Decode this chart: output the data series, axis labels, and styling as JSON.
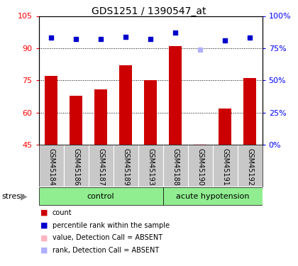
{
  "title": "GDS1251 / 1390547_at",
  "samples": [
    "GSM45184",
    "GSM45186",
    "GSM45187",
    "GSM45189",
    "GSM45193",
    "GSM45188",
    "GSM45190",
    "GSM45191",
    "GSM45192"
  ],
  "red_bar_values": [
    77,
    68,
    71,
    82,
    75,
    91,
    null,
    62,
    76
  ],
  "blue_square_values": [
    83,
    82,
    82,
    84,
    82,
    87,
    null,
    81,
    83
  ],
  "absent_bar_value": 45.5,
  "absent_rank_value": 74,
  "absent_index": 6,
  "ylim_left": [
    45,
    105
  ],
  "ylim_right": [
    0,
    100
  ],
  "yticks_left": [
    45,
    60,
    75,
    90,
    105
  ],
  "yticks_right": [
    0,
    25,
    50,
    75,
    100
  ],
  "ytick_labels_right": [
    "0%",
    "25%",
    "50%",
    "75%",
    "100%"
  ],
  "bar_color": "#CC0000",
  "square_color": "#0000CC",
  "absent_bar_color": "#FFB6C1",
  "absent_rank_color": "#B0B0FF",
  "stress_label": "stress",
  "background_plot": "#FFFFFF",
  "tick_area_color": "#C8C8C8",
  "green_color": "#90EE90"
}
